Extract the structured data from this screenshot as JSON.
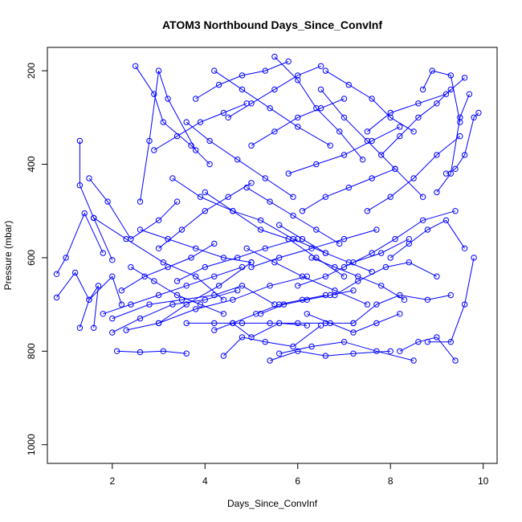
{
  "chart_data": {
    "type": "line",
    "title": "ATOM3 Northbound Days_Since_ConvInf",
    "xlabel": "Days_Since_ConvInf",
    "ylabel": "Pressure (mbar)",
    "xlim": [
      0.6,
      10.3
    ],
    "ylim": [
      1040,
      150
    ],
    "y_axis_inverted": true,
    "x_ticks": [
      2,
      4,
      6,
      8,
      10
    ],
    "y_ticks": [
      200,
      400,
      600,
      800,
      1000
    ],
    "grid": false,
    "legend": "none",
    "series_color": "#0000ff",
    "marker": "open-circle",
    "series": [
      {
        "x": [
          1.3,
          1.3,
          1.6,
          2.0
        ],
        "y": [
          350,
          445,
          515,
          605
        ]
      },
      {
        "x": [
          1.3,
          1.5,
          1.7,
          1.6
        ],
        "y": [
          750,
          690,
          660,
          750
        ]
      },
      {
        "x": [
          0.8,
          1.0,
          1.4,
          1.8
        ],
        "y": [
          635,
          600,
          505,
          590
        ]
      },
      {
        "x": [
          0.8,
          1.2,
          1.5,
          2.0,
          2.2
        ],
        "y": [
          685,
          632,
          690,
          640,
          700
        ]
      },
      {
        "x": [
          1.5,
          1.9,
          2.4,
          3.0,
          3.4
        ],
        "y": [
          430,
          480,
          560,
          520,
          480
        ]
      },
      {
        "x": [
          1.6,
          2.3,
          3.1,
          3.8,
          4.4
        ],
        "y": [
          515,
          560,
          610,
          640,
          690
        ]
      },
      {
        "x": [
          2.1,
          2.6,
          3.1,
          3.6
        ],
        "y": [
          800,
          802,
          800,
          805
        ]
      },
      {
        "x": [
          2.5,
          2.9,
          3.1,
          3.7,
          4.1
        ],
        "y": [
          190,
          250,
          310,
          360,
          400
        ]
      },
      {
        "x": [
          2.6,
          2.8,
          3.0,
          3.2,
          3.8
        ],
        "y": [
          480,
          350,
          200,
          260,
          370
        ]
      },
      {
        "x": [
          2.0,
          2.8,
          3.5,
          4.2,
          4.8,
          5.5
        ],
        "y": [
          730,
          700,
          690,
          680,
          660,
          700
        ]
      },
      {
        "x": [
          2.3,
          3.0,
          3.6,
          4.3,
          5.0
        ],
        "y": [
          755,
          740,
          700,
          660,
          610
        ]
      },
      {
        "x": [
          3.0,
          3.8,
          4.6,
          5.4,
          6.2
        ],
        "y": [
          740,
          710,
          690,
          660,
          640
        ]
      },
      {
        "x": [
          4.2,
          4.6,
          5.0,
          5.6,
          6.2
        ],
        "y": [
          755,
          740,
          770,
          740,
          745
        ]
      },
      {
        "x": [
          4.4,
          4.8,
          5.3,
          5.9,
          6.5
        ],
        "y": [
          810,
          770,
          780,
          790,
          745
        ]
      },
      {
        "x": [
          5.4,
          6.0,
          6.6,
          7.2,
          8.0
        ],
        "y": [
          820,
          800,
          810,
          805,
          800
        ]
      },
      {
        "x": [
          5.6,
          6.3,
          7.0,
          7.7,
          8.5
        ],
        "y": [
          805,
          790,
          780,
          800,
          820
        ]
      },
      {
        "x": [
          8.2,
          8.6,
          9.0,
          9.4
        ],
        "y": [
          800,
          780,
          770,
          820
        ]
      },
      {
        "x": [
          8.8,
          9.3,
          9.6,
          9.8
        ],
        "y": [
          780,
          780,
          700,
          600
        ]
      },
      {
        "x": [
          9.2,
          9.4,
          9.6,
          9.8,
          9.9
        ],
        "y": [
          420,
          410,
          380,
          300,
          290
        ]
      },
      {
        "x": [
          9.0,
          9.3,
          9.5,
          9.7
        ],
        "y": [
          460,
          420,
          300,
          250
        ]
      },
      {
        "x": [
          8.7,
          8.9,
          9.3,
          9.5
        ],
        "y": [
          240,
          200,
          210,
          310
        ]
      },
      {
        "x": [
          7.5,
          8.0,
          8.6,
          9.2,
          9.6
        ],
        "y": [
          330,
          290,
          270,
          250,
          215
        ]
      },
      {
        "x": [
          6.5,
          7.0,
          7.5,
          8.1,
          8.7
        ],
        "y": [
          240,
          300,
          350,
          410,
          470
        ]
      },
      {
        "x": [
          5.5,
          6.0,
          6.4,
          6.9,
          7.4
        ],
        "y": [
          170,
          220,
          280,
          330,
          390
        ]
      },
      {
        "x": [
          4.5,
          5.0,
          5.5,
          6.0,
          6.5
        ],
        "y": [
          300,
          270,
          240,
          210,
          190
        ]
      },
      {
        "x": [
          3.6,
          4.1,
          4.7,
          5.3,
          5.9
        ],
        "y": [
          310,
          350,
          390,
          430,
          470
        ]
      },
      {
        "x": [
          3.3,
          3.9,
          4.6,
          5.2,
          5.9,
          6.6
        ],
        "y": [
          430,
          470,
          500,
          520,
          560,
          590
        ]
      },
      {
        "x": [
          4.0,
          4.6,
          5.2,
          5.8,
          6.4,
          7.0
        ],
        "y": [
          460,
          500,
          540,
          560,
          600,
          640
        ]
      },
      {
        "x": [
          4.9,
          5.5,
          6.1,
          6.8,
          7.5
        ],
        "y": [
          580,
          610,
          640,
          670,
          700
        ]
      },
      {
        "x": [
          5.0,
          5.6,
          6.3,
          7.0,
          7.7
        ],
        "y": [
          620,
          600,
          580,
          560,
          540
        ]
      },
      {
        "x": [
          6.0,
          6.6,
          7.2,
          7.8,
          8.4
        ],
        "y": [
          660,
          640,
          610,
          590,
          560
        ]
      },
      {
        "x": [
          6.8,
          7.3,
          7.9,
          8.4,
          9.0
        ],
        "y": [
          680,
          650,
          620,
          610,
          640
        ]
      },
      {
        "x": [
          7.2,
          7.7,
          8.2,
          8.8,
          9.3
        ],
        "y": [
          740,
          700,
          680,
          690,
          680
        ]
      },
      {
        "x": [
          7.0,
          7.6,
          8.1,
          8.7,
          9.4
        ],
        "y": [
          620,
          590,
          560,
          520,
          500
        ]
      },
      {
        "x": [
          7.5,
          8.0,
          8.5,
          9.0,
          9.5
        ],
        "y": [
          500,
          470,
          430,
          380,
          340
        ]
      },
      {
        "x": [
          5.8,
          6.4,
          7.0,
          7.6,
          8.2
        ],
        "y": [
          420,
          400,
          380,
          350,
          320
        ]
      },
      {
        "x": [
          4.2,
          4.8,
          5.4,
          6.0,
          6.7
        ],
        "y": [
          200,
          240,
          280,
          320,
          360
        ]
      },
      {
        "x": [
          3.0,
          3.5,
          4.0,
          4.5,
          5.0
        ],
        "y": [
          580,
          540,
          500,
          470,
          440
        ]
      },
      {
        "x": [
          2.4,
          2.9,
          3.4,
          3.9,
          4.4
        ],
        "y": [
          620,
          650,
          680,
          700,
          720
        ]
      },
      {
        "x": [
          2.2,
          2.7,
          3.2,
          3.7,
          4.2
        ],
        "y": [
          670,
          640,
          620,
          600,
          570
        ]
      },
      {
        "x": [
          1.8,
          2.4,
          3.0,
          3.6,
          4.2,
          4.8
        ],
        "y": [
          720,
          700,
          680,
          660,
          640,
          620
        ]
      },
      {
        "x": [
          2.0,
          2.6,
          3.3,
          4.0,
          4.7
        ],
        "y": [
          760,
          730,
          700,
          690,
          670
        ]
      },
      {
        "x": [
          3.4,
          4.0,
          4.7,
          5.3,
          6.0
        ],
        "y": [
          650,
          620,
          600,
          580,
          560
        ]
      },
      {
        "x": [
          5.2,
          5.7,
          6.2,
          6.7,
          7.2
        ],
        "y": [
          720,
          700,
          690,
          680,
          670
        ]
      },
      {
        "x": [
          6.2,
          6.7,
          7.2,
          7.7,
          8.2
        ],
        "y": [
          720,
          740,
          760,
          740,
          720
        ]
      },
      {
        "x": [
          4.9,
          5.4,
          5.9,
          6.4,
          6.9
        ],
        "y": [
          450,
          480,
          510,
          540,
          570
        ]
      },
      {
        "x": [
          6.1,
          6.6,
          7.1,
          7.6,
          8.1
        ],
        "y": [
          500,
          470,
          450,
          430,
          410
        ]
      },
      {
        "x": [
          8.0,
          8.4,
          8.8,
          9.2,
          9.6
        ],
        "y": [
          600,
          570,
          540,
          520,
          580
        ]
      },
      {
        "x": [
          5.0,
          5.5,
          6.0,
          6.5,
          7.0
        ],
        "y": [
          360,
          330,
          300,
          280,
          260
        ]
      },
      {
        "x": [
          3.8,
          4.3,
          4.8,
          5.3,
          5.8
        ],
        "y": [
          260,
          230,
          210,
          200,
          180
        ]
      },
      {
        "x": [
          2.9,
          3.4,
          3.9,
          4.4,
          4.9
        ],
        "y": [
          370,
          340,
          310,
          290,
          270
        ]
      },
      {
        "x": [
          7.8,
          8.2,
          8.6,
          9.0,
          9.3
        ],
        "y": [
          380,
          340,
          300,
          270,
          240
        ]
      },
      {
        "x": [
          6.6,
          7.1,
          7.6,
          8.0,
          8.5
        ],
        "y": [
          200,
          230,
          260,
          300,
          330
        ]
      },
      {
        "x": [
          4.6,
          5.1,
          5.6,
          6.1,
          6.6
        ],
        "y": [
          740,
          720,
          700,
          690,
          680
        ]
      },
      {
        "x": [
          3.6,
          4.2,
          4.8,
          5.4,
          6.0,
          6.6,
          7.2
        ],
        "y": [
          740,
          740,
          740,
          740,
          740,
          740,
          740
        ]
      },
      {
        "x": [
          2.6,
          3.2,
          3.8,
          4.4,
          5.0
        ],
        "y": [
          540,
          560,
          580,
          600,
          610
        ]
      },
      {
        "x": [
          5.6,
          6.1,
          6.6,
          7.1,
          7.6
        ],
        "y": [
          530,
          560,
          590,
          610,
          630
        ]
      },
      {
        "x": [
          6.3,
          6.8,
          7.3,
          7.8,
          8.3
        ],
        "y": [
          600,
          620,
          640,
          660,
          690
        ]
      }
    ]
  }
}
